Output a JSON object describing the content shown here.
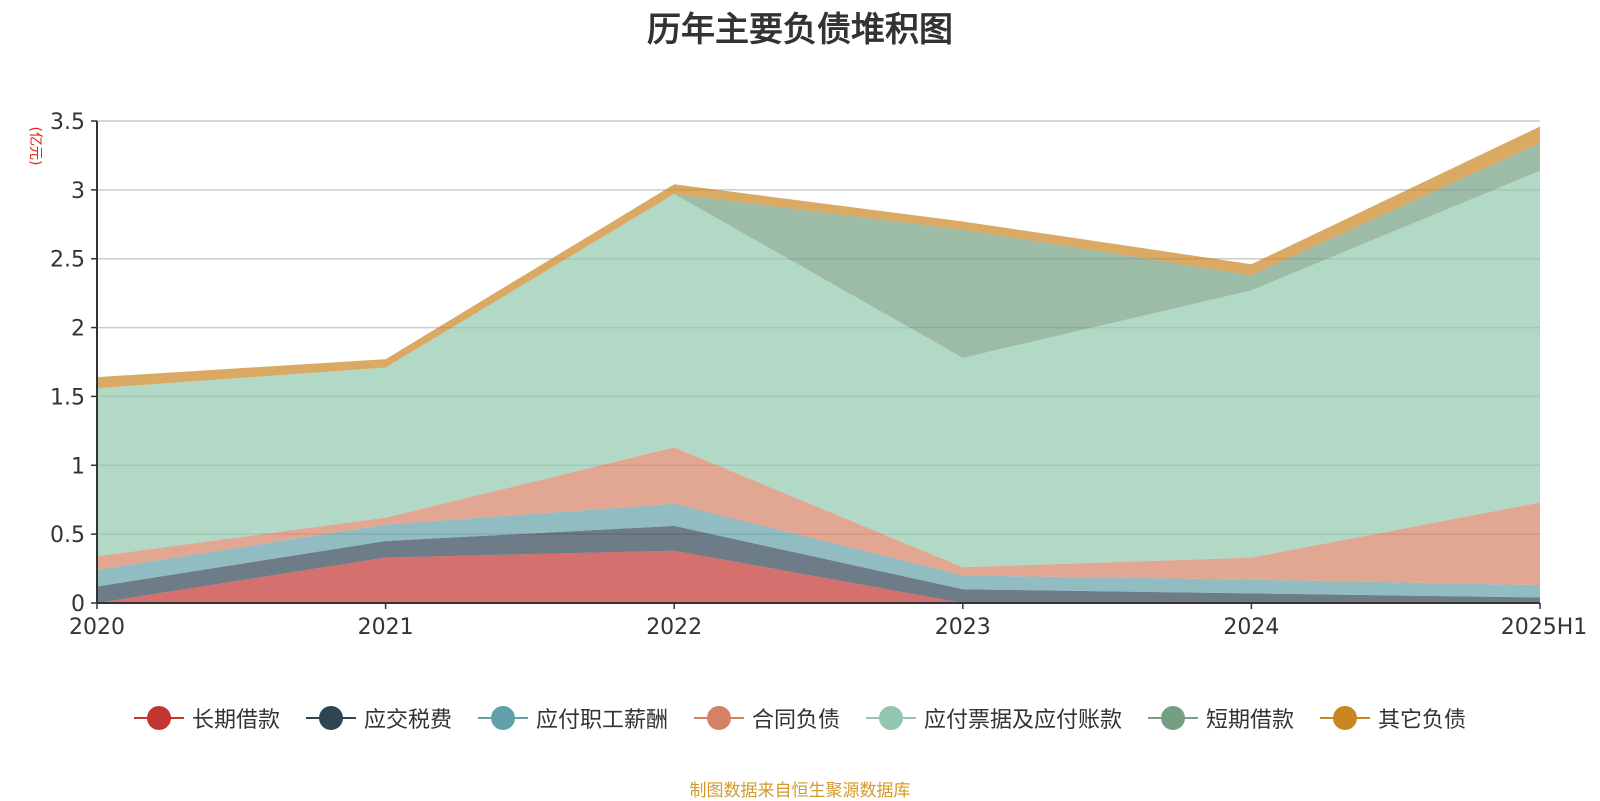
{
  "chart_data": {
    "type": "area",
    "title": "历年主要负债堆积图",
    "unit_label": "(亿元)",
    "unit_color": "#e0251b",
    "categories": [
      "2020",
      "2021",
      "2022",
      "2023",
      "2024",
      "2025H1"
    ],
    "ylim": [
      0,
      3.5
    ],
    "yticks": [
      "0",
      "0.5",
      "1",
      "1.5",
      "2",
      "2.5",
      "3",
      "3.5"
    ],
    "stacked": true,
    "grid": true,
    "legend_position": "bottom",
    "series": [
      {
        "name": "长期借款",
        "color": "#c23531",
        "values": [
          0.0,
          0.33,
          0.38,
          0.0,
          0.0,
          0.0
        ]
      },
      {
        "name": "应交税费",
        "color": "#2f4554",
        "values": [
          0.12,
          0.12,
          0.18,
          0.1,
          0.07,
          0.04
        ]
      },
      {
        "name": "应付职工薪酬",
        "color": "#61a0a8",
        "values": [
          0.12,
          0.12,
          0.16,
          0.1,
          0.1,
          0.09
        ]
      },
      {
        "name": "合同负债",
        "color": "#d48265",
        "values": [
          0.1,
          0.05,
          0.41,
          0.06,
          0.16,
          0.6
        ]
      },
      {
        "name": "应付票据及应付账款",
        "color": "#91c7ae",
        "values": [
          1.22,
          1.09,
          1.84,
          1.52,
          1.94,
          2.41
        ]
      },
      {
        "name": "短期借款",
        "color": "#749f83",
        "values": [
          0.0,
          0.0,
          0.0,
          0.93,
          0.11,
          0.2
        ]
      },
      {
        "name": "其它负债",
        "color": "#ca8622",
        "values": [
          0.08,
          0.06,
          0.07,
          0.06,
          0.08,
          0.12
        ]
      }
    ]
  },
  "source_note": "制图数据来自恒生聚源数据库"
}
